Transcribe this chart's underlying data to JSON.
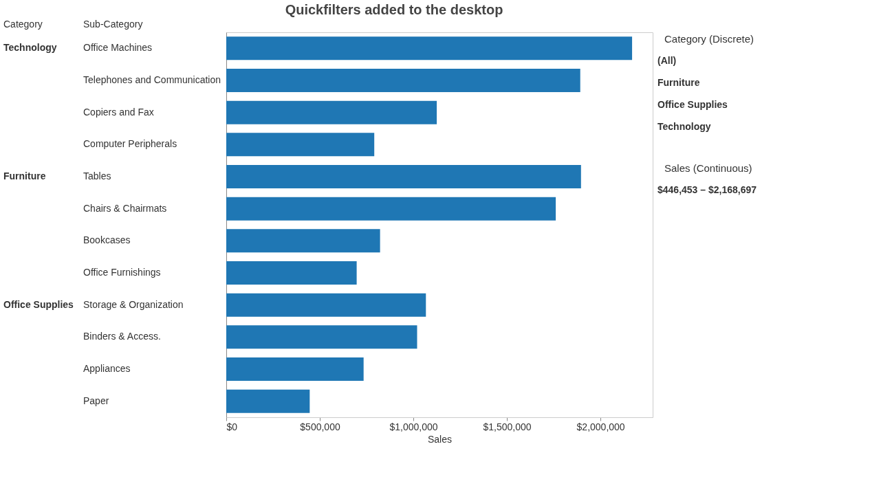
{
  "chart_data": {
    "type": "bar",
    "orientation": "horizontal",
    "title": "Quickfilters added to the desktop",
    "categories": [
      "Office Machines",
      "Telephones and Communication",
      "Copiers and Fax",
      "Computer Peripherals",
      "Tables",
      "Chairs & Chairmats",
      "Bookcases",
      "Office Furnishings",
      "Storage & Organization",
      "Binders & Access.",
      "Appliances",
      "Paper"
    ],
    "values": [
      2169000,
      1892000,
      1125000,
      791000,
      1896000,
      1761000,
      822000,
      697000,
      1067000,
      1020000,
      734000,
      446000
    ],
    "color": "#1f77b4",
    "xlabel": "Sales",
    "xlim": [
      0,
      2279000
    ],
    "xticks": [
      {
        "value": 0,
        "label": "$0"
      },
      {
        "value": 500000,
        "label": "$500,000"
      },
      {
        "value": 1000000,
        "label": "$1,000,000"
      },
      {
        "value": 1500000,
        "label": "$1,500,000"
      },
      {
        "value": 2000000,
        "label": "$2,000,000"
      }
    ],
    "grid": false,
    "annotations": [
      "Category",
      "Sub-Category",
      "Technology",
      "Furniture",
      "Office Supplies",
      "Category (Discrete)",
      "(All)",
      "Furniture",
      "Office Supplies",
      "Technology",
      "Sales (Continuous)",
      "$446,453 – $2,168,697"
    ]
  }
}
